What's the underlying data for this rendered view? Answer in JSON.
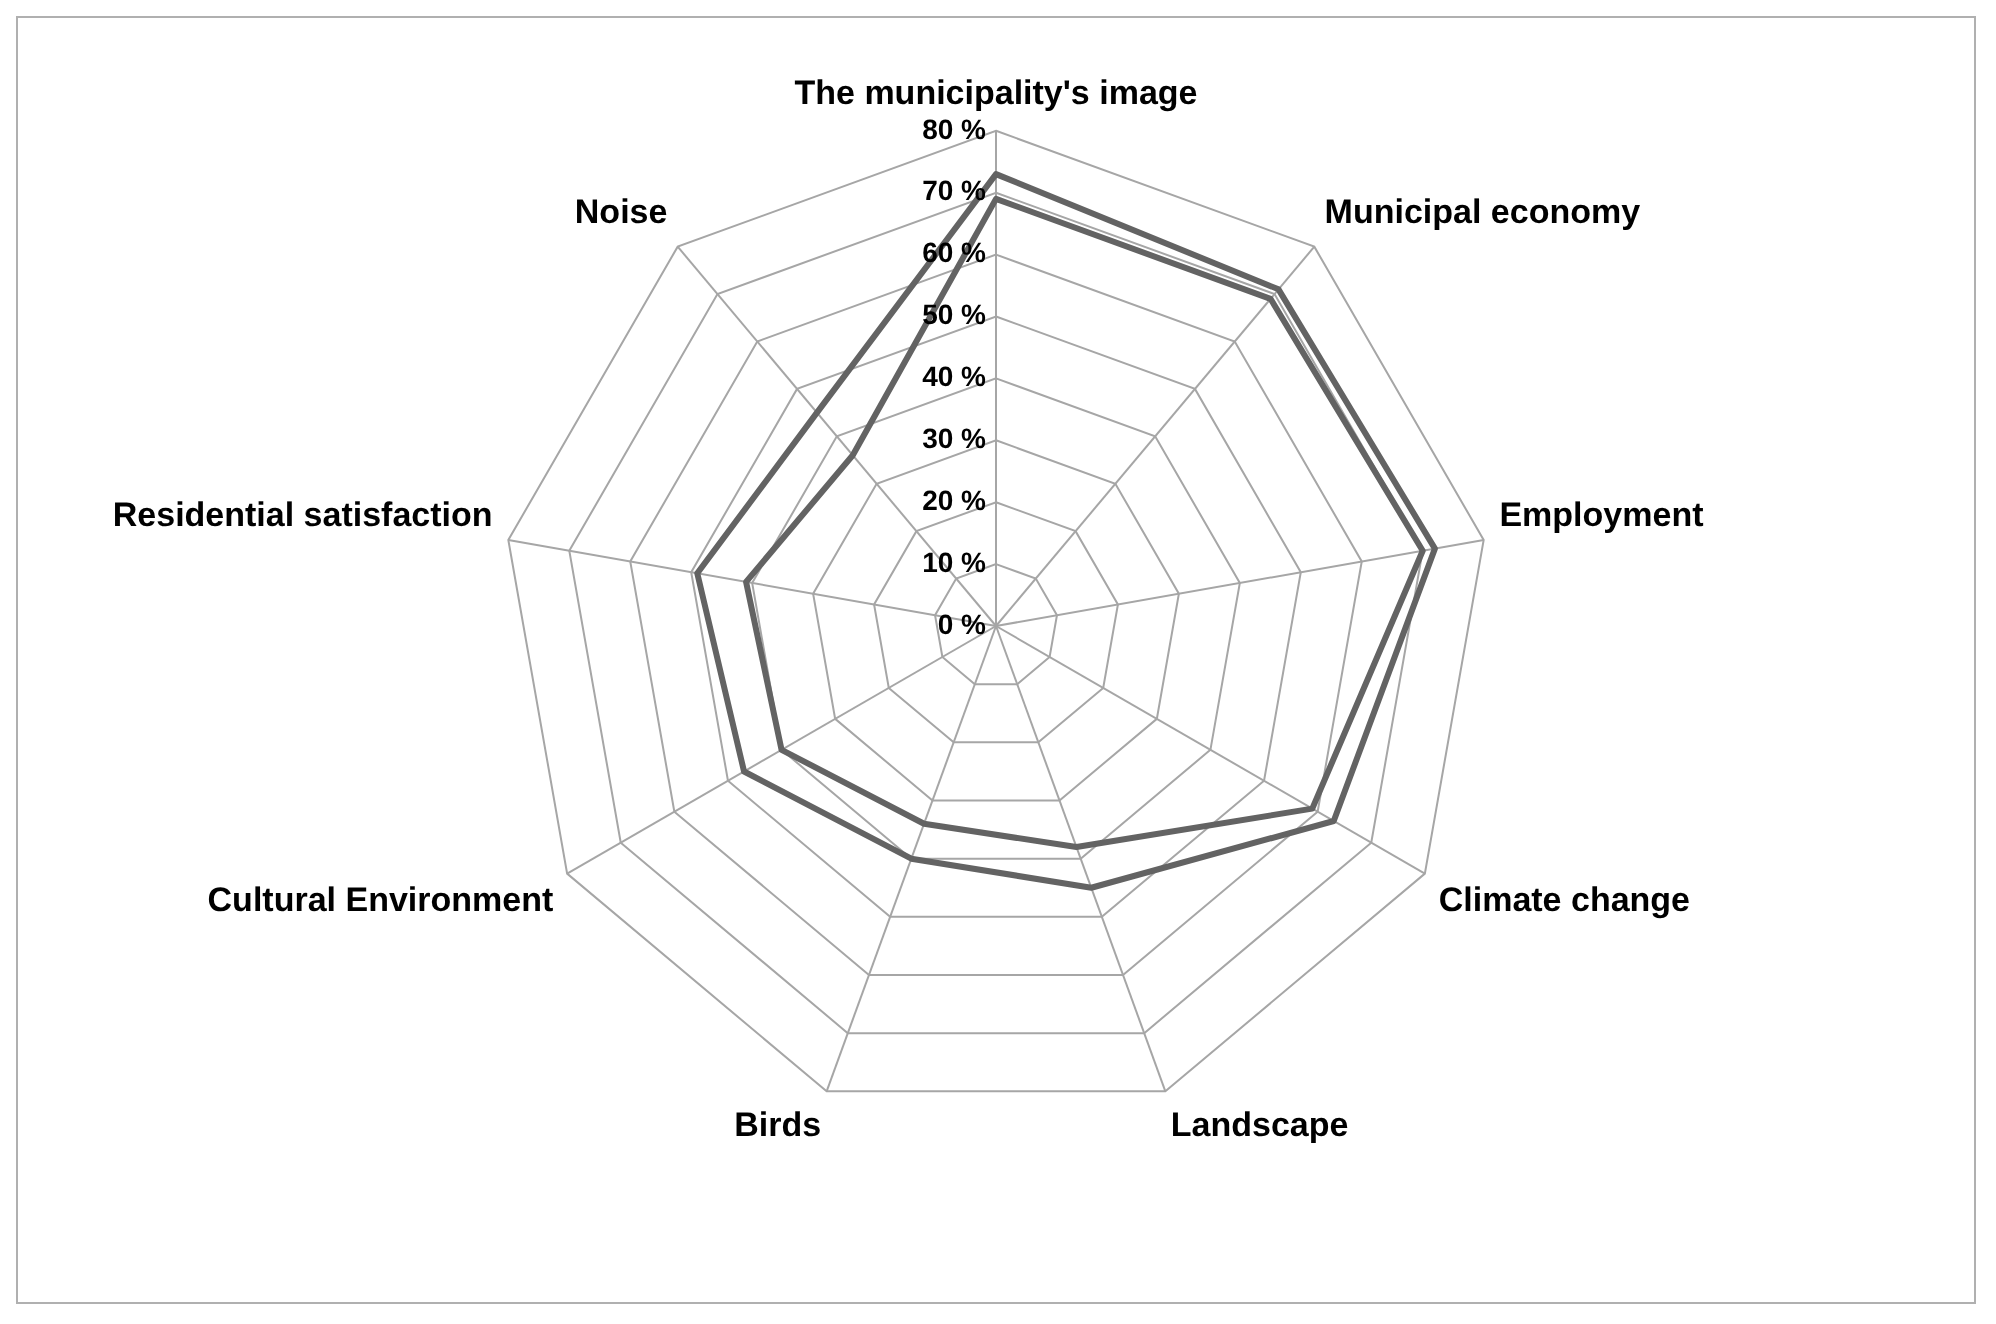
{
  "chart_data": {
    "type": "radar",
    "categories": [
      "The municipality's image",
      "Municipal economy",
      "Employment",
      "Climate change",
      "Landscape",
      "Birds",
      "Cultural Environment",
      "Residential satisfaction",
      "Noise"
    ],
    "series": [
      {
        "color": "#636363",
        "values": [
          73,
          71,
          72,
          63,
          45,
          40,
          47,
          49,
          45
        ]
      },
      {
        "color": "#636363",
        "values": [
          69,
          69,
          70,
          59,
          38,
          34,
          40,
          41,
          36
        ]
      }
    ],
    "ylim": [
      0,
      80
    ],
    "yticks": [
      {
        "value": 0,
        "label": "0 %"
      },
      {
        "value": 10,
        "label": "10 %"
      },
      {
        "value": 20,
        "label": "20 %"
      },
      {
        "value": 30,
        "label": "30 %"
      },
      {
        "value": 40,
        "label": "40 %"
      },
      {
        "value": 50,
        "label": "50 %"
      },
      {
        "value": 60,
        "label": "60 %"
      },
      {
        "value": 70,
        "label": "70 %"
      },
      {
        "value": 80,
        "label": "80 %"
      }
    ],
    "grid": true,
    "legend": false,
    "marker": "none",
    "line_style": "solid"
  }
}
